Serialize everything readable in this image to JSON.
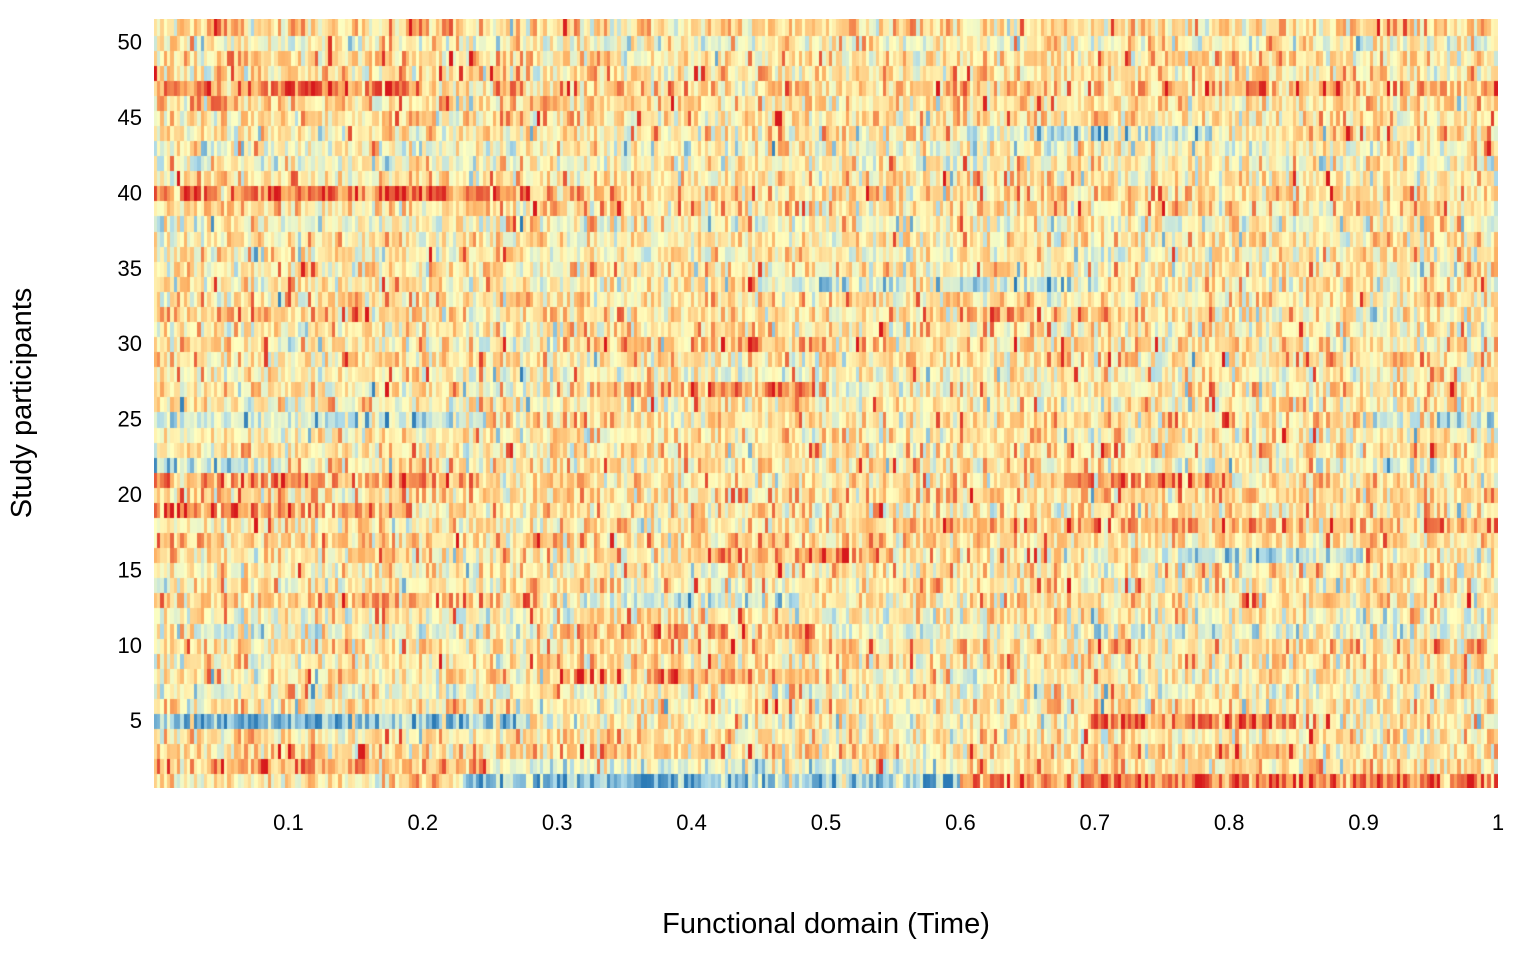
{
  "chart_data": {
    "type": "heatmap",
    "title": "",
    "xlabel": "Functional domain (Time)",
    "ylabel": "Study participants",
    "xlim": [
      0,
      1
    ],
    "ylim": [
      0,
      51
    ],
    "x_ticks": [
      0.1,
      0.2,
      0.3,
      0.4,
      0.5,
      0.6,
      0.7,
      0.8,
      0.9,
      1
    ],
    "x_tick_labels": [
      "0.1",
      "0.2",
      "0.3",
      "0.4",
      "0.5",
      "0.6",
      "0.7",
      "0.8",
      "0.9",
      "1"
    ],
    "y_ticks": [
      5,
      10,
      15,
      20,
      25,
      30,
      35,
      40,
      45,
      50
    ],
    "y_tick_labels": [
      "5",
      "10",
      "15",
      "20",
      "25",
      "30",
      "35",
      "40",
      "45",
      "50"
    ],
    "n_rows": 51,
    "n_columns": 400,
    "value_range": [
      -3,
      3
    ],
    "colormap": [
      "#2c7bb6",
      "#abd9e9",
      "#ffffbf",
      "#fdae61",
      "#d7191c"
    ],
    "grid": false,
    "legend": "none",
    "row_patterns": [
      {
        "row": 1,
        "segments": [
          [
            0.0,
            0.23,
            0.3
          ],
          [
            0.23,
            0.6,
            -1.8
          ],
          [
            0.6,
            1.0,
            1.9
          ]
        ]
      },
      {
        "row": 2,
        "segments": [
          [
            0.0,
            0.25,
            1.3
          ],
          [
            0.25,
            0.6,
            -0.3
          ],
          [
            0.6,
            1.0,
            0.6
          ]
        ]
      },
      {
        "row": 5,
        "segments": [
          [
            0.0,
            0.28,
            -1.6
          ],
          [
            0.28,
            0.7,
            0.2
          ],
          [
            0.7,
            0.85,
            1.9
          ],
          [
            0.85,
            1.0,
            0.4
          ]
        ]
      },
      {
        "row": 8,
        "segments": [
          [
            0.0,
            0.3,
            0.3
          ],
          [
            0.3,
            0.5,
            1.3
          ],
          [
            0.5,
            1.0,
            0.2
          ]
        ]
      },
      {
        "row": 11,
        "segments": [
          [
            0.0,
            0.3,
            -0.4
          ],
          [
            0.3,
            0.5,
            1.2
          ],
          [
            0.5,
            1.0,
            -0.3
          ]
        ]
      },
      {
        "row": 13,
        "segments": [
          [
            0.0,
            0.3,
            1.0
          ],
          [
            0.3,
            0.48,
            -0.9
          ],
          [
            0.48,
            1.0,
            0.5
          ]
        ]
      },
      {
        "row": 16,
        "segments": [
          [
            0.0,
            0.4,
            0.5
          ],
          [
            0.4,
            0.55,
            1.5
          ],
          [
            0.55,
            0.75,
            0.4
          ],
          [
            0.75,
            0.9,
            -1.2
          ],
          [
            0.9,
            1.0,
            0.2
          ]
        ]
      },
      {
        "row": 18,
        "segments": [
          [
            0.0,
            0.55,
            0.4
          ],
          [
            0.55,
            1.0,
            1.2
          ]
        ]
      },
      {
        "row": 19,
        "segments": [
          [
            0.0,
            0.2,
            1.6
          ],
          [
            0.2,
            1.0,
            0.5
          ]
        ]
      },
      {
        "row": 21,
        "segments": [
          [
            0.0,
            0.22,
            1.6
          ],
          [
            0.22,
            0.68,
            0.5
          ],
          [
            0.68,
            0.8,
            1.6
          ],
          [
            0.8,
            1.0,
            0.3
          ]
        ]
      },
      {
        "row": 22,
        "segments": [
          [
            0.0,
            0.1,
            -0.9
          ],
          [
            0.1,
            0.7,
            0.4
          ],
          [
            0.7,
            1.0,
            -0.2
          ]
        ]
      },
      {
        "row": 25,
        "segments": [
          [
            0.0,
            0.25,
            -0.8
          ],
          [
            0.25,
            0.9,
            0.6
          ],
          [
            0.9,
            1.0,
            -0.8
          ]
        ]
      },
      {
        "row": 27,
        "segments": [
          [
            0.0,
            0.33,
            0.2
          ],
          [
            0.33,
            0.5,
            1.5
          ],
          [
            0.5,
            1.0,
            0.3
          ]
        ]
      },
      {
        "row": 30,
        "segments": [
          [
            0.0,
            0.3,
            0.3
          ],
          [
            0.3,
            0.55,
            1.1
          ],
          [
            0.55,
            1.0,
            0.4
          ]
        ]
      },
      {
        "row": 32,
        "segments": [
          [
            0.0,
            0.2,
            0.9
          ],
          [
            0.2,
            0.6,
            0.4
          ],
          [
            0.6,
            0.77,
            1.2
          ],
          [
            0.77,
            1.0,
            0.3
          ]
        ]
      },
      {
        "row": 34,
        "segments": [
          [
            0.0,
            0.45,
            0.3
          ],
          [
            0.45,
            0.7,
            -0.8
          ],
          [
            0.7,
            1.0,
            0.2
          ]
        ]
      },
      {
        "row": 40,
        "segments": [
          [
            0.0,
            0.28,
            1.9
          ],
          [
            0.28,
            1.0,
            0.6
          ]
        ]
      },
      {
        "row": 44,
        "segments": [
          [
            0.0,
            0.6,
            0.4
          ],
          [
            0.6,
            0.8,
            -0.9
          ],
          [
            0.8,
            1.0,
            0.5
          ]
        ]
      },
      {
        "row": 47,
        "segments": [
          [
            0.0,
            0.2,
            1.9
          ],
          [
            0.2,
            0.75,
            0.7
          ],
          [
            0.75,
            1.0,
            1.2
          ]
        ]
      },
      {
        "row": 49,
        "segments": [
          [
            0.0,
            0.35,
            0.8
          ],
          [
            0.35,
            0.65,
            0.3
          ],
          [
            0.65,
            1.0,
            0.6
          ]
        ]
      }
    ]
  }
}
